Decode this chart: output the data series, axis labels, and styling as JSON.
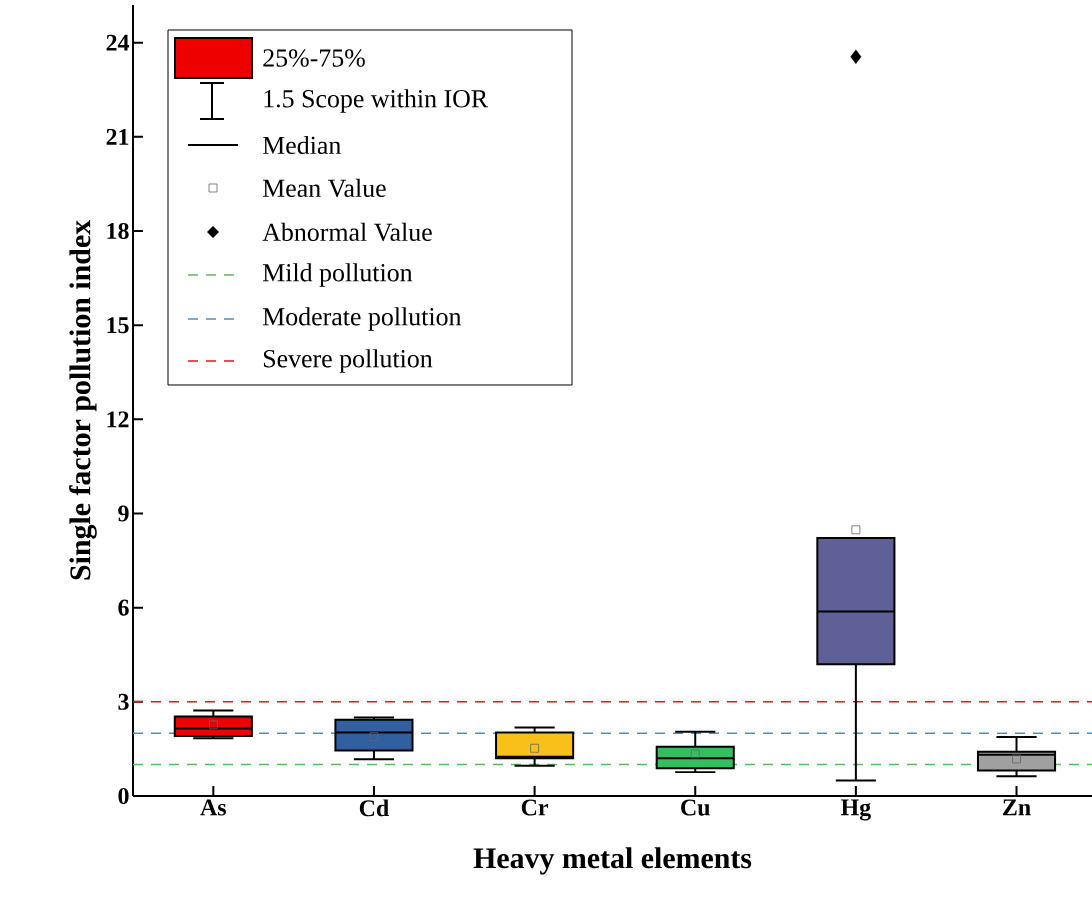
{
  "chart_data": {
    "type": "box",
    "xlabel": "Heavy metal elements",
    "ylabel": "Single factor pollution index",
    "categories": [
      "As",
      "Cd",
      "Cr",
      "Cu",
      "Hg",
      "Zn"
    ],
    "colors": [
      "#ee0000",
      "#3060a0",
      "#f8c018",
      "#30c060",
      "#606098",
      "#a0a0a0"
    ],
    "boxes": [
      {
        "low": 1.84,
        "q1": 1.91,
        "median": 2.15,
        "q3": 2.53,
        "high": 2.72,
        "mean": 2.27
      },
      {
        "low": 1.17,
        "q1": 1.45,
        "median": 2.02,
        "q3": 2.43,
        "high": 2.5,
        "mean": 1.89
      },
      {
        "low": 0.96,
        "q1": 1.2,
        "median": 1.25,
        "q3": 2.02,
        "high": 2.18,
        "mean": 1.52
      },
      {
        "low": 0.76,
        "q1": 0.88,
        "median": 1.2,
        "q3": 1.57,
        "high": 2.05,
        "mean": 1.34
      },
      {
        "low": 0.49,
        "q1": 4.2,
        "median": 5.88,
        "q3": 8.22,
        "high": 8.22,
        "mean": 8.48,
        "outliers": [
          23.55
        ]
      },
      {
        "low": 0.63,
        "q1": 0.81,
        "median": 1.31,
        "q3": 1.41,
        "high": 1.88,
        "mean": 1.18
      }
    ],
    "ylim": [
      0,
      25.2
    ],
    "yticks": [
      0,
      3,
      6,
      9,
      12,
      15,
      18,
      21,
      24
    ],
    "ref_lines": [
      {
        "axis": "y",
        "value": 1,
        "label": "Mild pollution",
        "color": "#5cb85c",
        "line_style": "dashed"
      },
      {
        "axis": "y",
        "value": 2,
        "label": "Moderate pollution",
        "color": "#4a90c8",
        "line_style": "dashed"
      },
      {
        "axis": "y",
        "value": 3,
        "label": "Severe pollution",
        "color": "#e8141e",
        "line_style": "dashed"
      }
    ],
    "annotations": [
      "25%-75%",
      "1.5 Scope within IOR",
      "Median",
      "Mean Value",
      "Abnormal Value"
    ],
    "legend": "top left",
    "grid": false
  }
}
